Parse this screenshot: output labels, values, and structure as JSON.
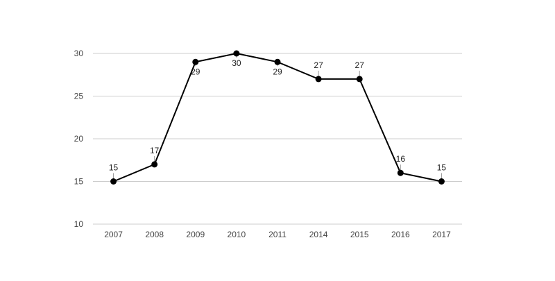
{
  "chart_data": {
    "type": "line",
    "categories": [
      "2007",
      "2008",
      "2009",
      "2010",
      "2011",
      "2014",
      "2015",
      "2016",
      "2017"
    ],
    "series": [
      {
        "values": [
          15,
          17,
          29,
          30,
          29,
          27,
          27,
          16,
          15
        ],
        "data_labels": [
          "15",
          "17",
          "29",
          "30",
          "29",
          "27",
          "27",
          "16",
          "15"
        ],
        "label_positions": [
          "above",
          "above",
          "below",
          "below",
          "below",
          "above",
          "above",
          "above",
          "above"
        ]
      }
    ],
    "yticks": [
      10,
      15,
      20,
      25,
      30
    ],
    "ytick_labels": [
      "10",
      "15",
      "20",
      "25",
      "30"
    ],
    "ylim": [
      10,
      30
    ],
    "grid": true,
    "legend": "none",
    "colors": {
      "line": "#000000",
      "marker": "#000000",
      "grid": "#cccccc",
      "axis_text": "#444444"
    }
  }
}
